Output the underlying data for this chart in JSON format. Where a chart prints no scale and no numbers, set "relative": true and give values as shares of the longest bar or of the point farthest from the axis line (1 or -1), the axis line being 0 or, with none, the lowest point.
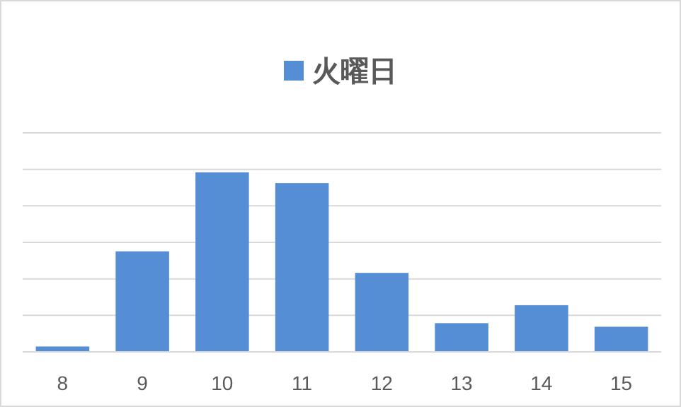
{
  "chart_data": {
    "type": "bar",
    "relative": true,
    "categories": [
      "8",
      "9",
      "10",
      "11",
      "12",
      "13",
      "14",
      "15"
    ],
    "series": [
      {
        "name": "火曜日",
        "color": "#558ed5",
        "values": [
          0.03,
          0.56,
          1,
          0.94,
          0.44,
          0.16,
          0.26,
          0.14
        ]
      }
    ],
    "legend": "top",
    "grid": "y"
  }
}
